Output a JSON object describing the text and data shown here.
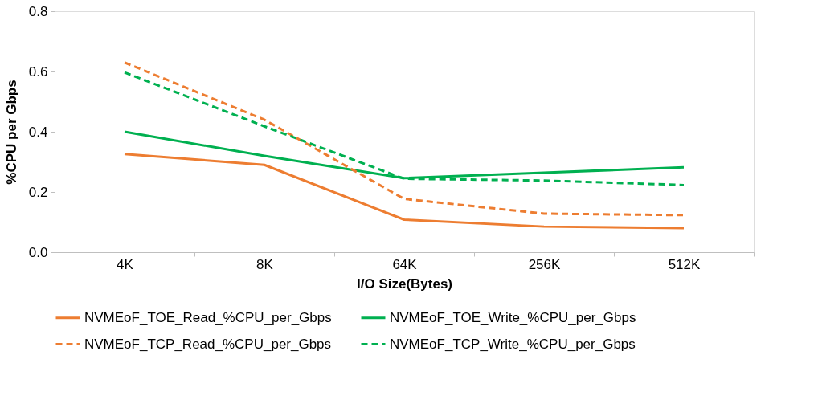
{
  "chart_data": {
    "type": "line",
    "xlabel": "I/O Size(Bytes)",
    "ylabel": "%CPU per Gbps",
    "categories": [
      "4K",
      "8K",
      "64K",
      "256K",
      "512K"
    ],
    "ylim": [
      0,
      0.8
    ],
    "yticks": [
      {
        "value": 0,
        "label": "0.0"
      },
      0.2,
      0.4,
      0.6,
      0.8
    ],
    "grid": false,
    "legend": "bottom",
    "marker": "none",
    "series": [
      {
        "name": "NVMEoF_TOE_Read_%CPU_per_Gbps",
        "color": "#ed7d31",
        "line_style": "solid",
        "values": [
          0.326,
          0.29,
          0.108,
          0.085,
          0.08
        ]
      },
      {
        "name": "NVMEoF_TOE_Write_%CPU_per_Gbps",
        "color": "#00b050",
        "line_style": "solid",
        "values": [
          0.4,
          0.32,
          0.246,
          0.264,
          0.282
        ]
      },
      {
        "name": "NVMEoF_TCP_Read_%CPU_per_Gbps",
        "color": "#ed7d31",
        "line_style": "dashed",
        "values": [
          0.63,
          0.44,
          0.177,
          0.128,
          0.123
        ]
      },
      {
        "name": "NVMEoF_TCP_Write_%CPU_per_Gbps",
        "color": "#00b050",
        "line_style": "dashed",
        "values": [
          0.597,
          0.418,
          0.244,
          0.238,
          0.223
        ]
      }
    ]
  }
}
